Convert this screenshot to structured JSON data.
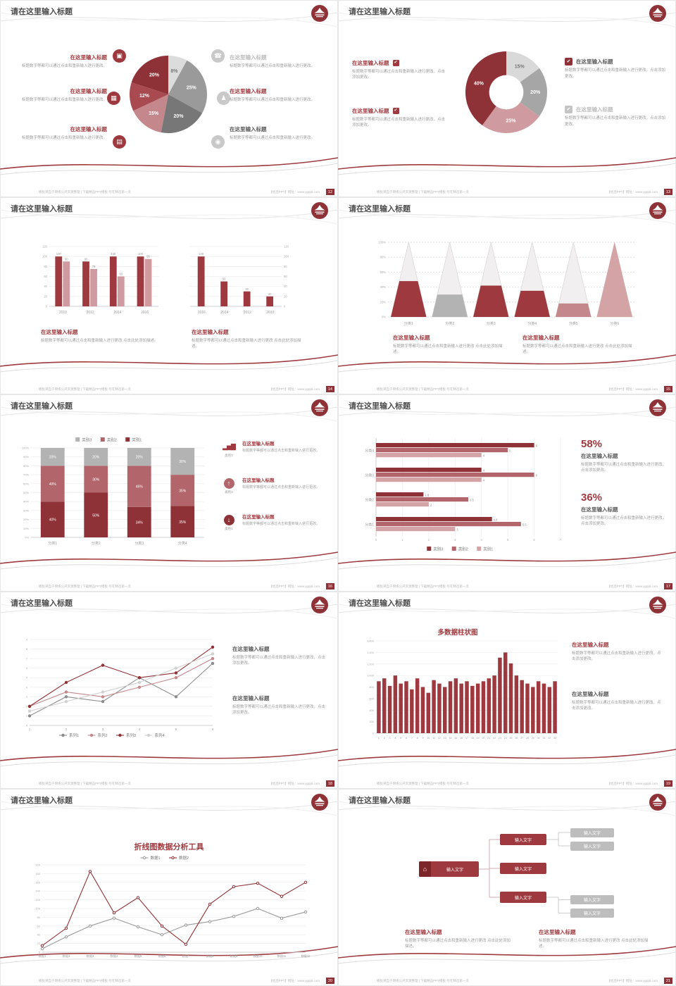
{
  "common": {
    "slide_title": "请在这里输入标题",
    "block_title": "在这里输入标题",
    "body_short": "标题数字等都可以通过点击和重新输入进行更改。",
    "body_mid": "标题数字等都可以通过点击和重新输入进行更改，点击添加更改。",
    "body_long": "标题数字等都可以通过点击和重新输入进行更改 点击此处添加描述。"
  },
  "footer": {
    "left": "模板来自于网络公开资源整理 | 下载精品PPT模板·尽在精选第一页",
    "right": "【优品PPT】网址：www.ypppt.com"
  },
  "icons": {
    "monitor": "▣",
    "car": "▦",
    "book": "▤",
    "phone": "☎",
    "users": "♟",
    "bike": "◉",
    "check": "✔",
    "bars": "▂▅▇",
    "up": "↑",
    "down": "↓",
    "home": "⌂"
  },
  "slides": {
    "s12": {
      "page": "12"
    },
    "s13": {
      "page": "13"
    },
    "s14": {
      "page": "14"
    },
    "s15": {
      "page": "15"
    },
    "s16": {
      "page": "16",
      "items": [
        {
          "caption": "类别3"
        },
        {
          "caption": "类别2"
        },
        {
          "caption": "类别1"
        }
      ]
    },
    "s17": {
      "page": "17",
      "stat1": "58%",
      "stat2": "36%"
    },
    "s18": {
      "page": "18"
    },
    "s19": {
      "page": "19"
    },
    "s20": {
      "page": "20"
    },
    "s21": {
      "page": "21",
      "root": "输入文字",
      "n1": "输入文字",
      "n2": "输入文字",
      "n3": "输入文字",
      "l1": "输入文字",
      "l2": "输入文字",
      "l3": "输入文字",
      "l4": "输入文字"
    }
  },
  "chart_data": [
    {
      "type": "pie",
      "slices": [
        {
          "label": "8%",
          "value": 8,
          "color": "#dcdcdc",
          "text": "#777777"
        },
        {
          "label": "25%",
          "value": 25,
          "color": "#9a9a9a",
          "text": "#ffffff"
        },
        {
          "label": "20%",
          "value": 20,
          "color": "#777777",
          "text": "#ffffff"
        },
        {
          "label": "15%",
          "value": 15,
          "color": "#c4878b",
          "text": "#ffffff"
        },
        {
          "label": "12%",
          "value": 12,
          "color": "#a84a50",
          "text": "#ffffff"
        },
        {
          "label": "20%",
          "value": 20,
          "color": "#8f3237",
          "text": "#ffffff"
        }
      ]
    },
    {
      "type": "donut",
      "slices": [
        {
          "label": "15%",
          "value": 15,
          "color": "#d9d9d9",
          "text": "#777777"
        },
        {
          "label": "20%",
          "value": 20,
          "color": "#a6a6a6",
          "text": "#ffffff"
        },
        {
          "label": "25%",
          "value": 25,
          "color": "#cf9ba0",
          "text": "#ffffff"
        },
        {
          "label": "40%",
          "value": 40,
          "color": "#8f3237",
          "text": "#ffffff"
        }
      ]
    },
    {
      "type": "bars",
      "categories": [
        "2010",
        "2012",
        "2014",
        "2016"
      ],
      "ylim": [
        0,
        120
      ],
      "ticks": 6,
      "series": [
        {
          "name": "",
          "color": "#9e3a3f",
          "values": [
            100,
            90,
            100,
            100
          ]
        },
        {
          "name": "",
          "color": "#cf9ba0",
          "values": [
            90,
            75,
            60,
            95
          ]
        }
      ]
    },
    {
      "type": "bars",
      "right": true,
      "categories": [
        "2016",
        "2014",
        "2012",
        "2010"
      ],
      "ylim": [
        0,
        120
      ],
      "ticks": 6,
      "series": [
        {
          "name": "",
          "color": "#9e3a3f",
          "values": [
            100,
            50,
            30,
            20
          ]
        }
      ]
    },
    {
      "type": "cone",
      "categories": [
        "分类1",
        "分类2",
        "分类3",
        "分类4",
        "分类5",
        "分类6"
      ],
      "values": [
        48,
        30,
        42,
        35,
        18,
        100
      ],
      "colors": [
        "#9e3a3f",
        "#b3b3b3",
        "#9e3a3f",
        "#9e3a3f",
        "#c4878b",
        "#d4a3a6"
      ],
      "ylim": [
        0,
        100
      ]
    },
    {
      "type": "stacked",
      "categories": [
        "分类1",
        "分类2",
        "分类3",
        "分类4"
      ],
      "series": [
        {
          "name": "类别1",
          "color": "#8f3237",
          "values": [
            40,
            50,
            34,
            35
          ]
        },
        {
          "name": "类别2",
          "color": "#b2666b",
          "values": [
            40,
            30,
            46,
            35
          ]
        },
        {
          "name": "类别3",
          "color": "#b3b3b3",
          "values": [
            20,
            20,
            20,
            30
          ]
        }
      ],
      "legend": [
        "类别3",
        "类别2",
        "类别1"
      ],
      "legend_colors": [
        "#b3b3b3",
        "#b2666b",
        "#8f3237"
      ]
    },
    {
      "type": "hbar",
      "categories": [
        "分类4",
        "分类3",
        "分类2",
        "分类1"
      ],
      "xlim": [
        0,
        7
      ],
      "series": [
        {
          "name": "类别3",
          "color": "#8f3237",
          "values": [
            6,
            4,
            1.8,
            4.4
          ]
        },
        {
          "name": "类别2",
          "color": "#b2666b",
          "values": [
            5,
            6,
            3.5,
            5.5
          ]
        },
        {
          "name": "类别1",
          "color": "#d4a3a6",
          "values": [
            4,
            4,
            2,
            3
          ]
        }
      ]
    },
    {
      "type": "line",
      "x": [
        "1",
        "2",
        "3",
        "4",
        "5",
        "6"
      ],
      "ylim": [
        0,
        9
      ],
      "ystep": 1,
      "legend": "bottom",
      "series": [
        {
          "name": "系列1",
          "color": "#8c8c8c",
          "values": [
            1,
            3,
            2.5,
            5,
            3,
            6.5
          ]
        },
        {
          "name": "系列2",
          "color": "#c4878b",
          "values": [
            2,
            3.5,
            3,
            4,
            5,
            7
          ]
        },
        {
          "name": "系列3",
          "color": "#8f3237",
          "values": [
            2,
            4.5,
            6.3,
            5,
            5.5,
            8.2
          ]
        },
        {
          "name": "系列4",
          "color": "#d0d0d0",
          "values": [
            1.5,
            2.5,
            3.5,
            4.5,
            6,
            7.5
          ]
        }
      ]
    },
    {
      "type": "column",
      "title": "多数据柱状图",
      "categories": [
        "1",
        "2",
        "3",
        "4",
        "5",
        "6",
        "7",
        "8",
        "9",
        "10",
        "11",
        "12",
        "13",
        "14",
        "15",
        "16",
        "17",
        "18",
        "19",
        "20",
        "21",
        "22",
        "23",
        "24",
        "25",
        "26",
        "27",
        "28",
        "29",
        "30",
        "31",
        "32",
        "33"
      ],
      "values": [
        900,
        950,
        820,
        1000,
        860,
        900,
        760,
        950,
        800,
        700,
        920,
        860,
        800,
        900,
        950,
        860,
        900,
        820,
        860,
        900,
        950,
        1000,
        1310,
        1400,
        1210,
        1000,
        920,
        860,
        800,
        900,
        860,
        800,
        900
      ],
      "ylim": [
        0,
        1600
      ],
      "ystep": 200,
      "color": "#9e3a3f"
    },
    {
      "type": "line",
      "title": "折线图数据分析工具",
      "x": [
        "数据1",
        "数据2",
        "数据3",
        "数据4",
        "数据5",
        "数据6",
        "数据7",
        "数据8",
        "数据9",
        "数据10",
        "数据11",
        "数据12"
      ],
      "ylim": [
        0,
        200
      ],
      "ystep": 20,
      "legend": "top",
      "series": [
        {
          "name": "数据1",
          "color": "#9a9a9a",
          "values": [
            8,
            35,
            60,
            78,
            58,
            40,
            62,
            70,
            82,
            100,
            78,
            92
          ],
          "open": true
        },
        {
          "name": "数据2",
          "color": "#8f3237",
          "values": [
            15,
            55,
            185,
            90,
            125,
            60,
            18,
            110,
            150,
            158,
            128,
            160
          ],
          "open": true
        }
      ]
    }
  ]
}
